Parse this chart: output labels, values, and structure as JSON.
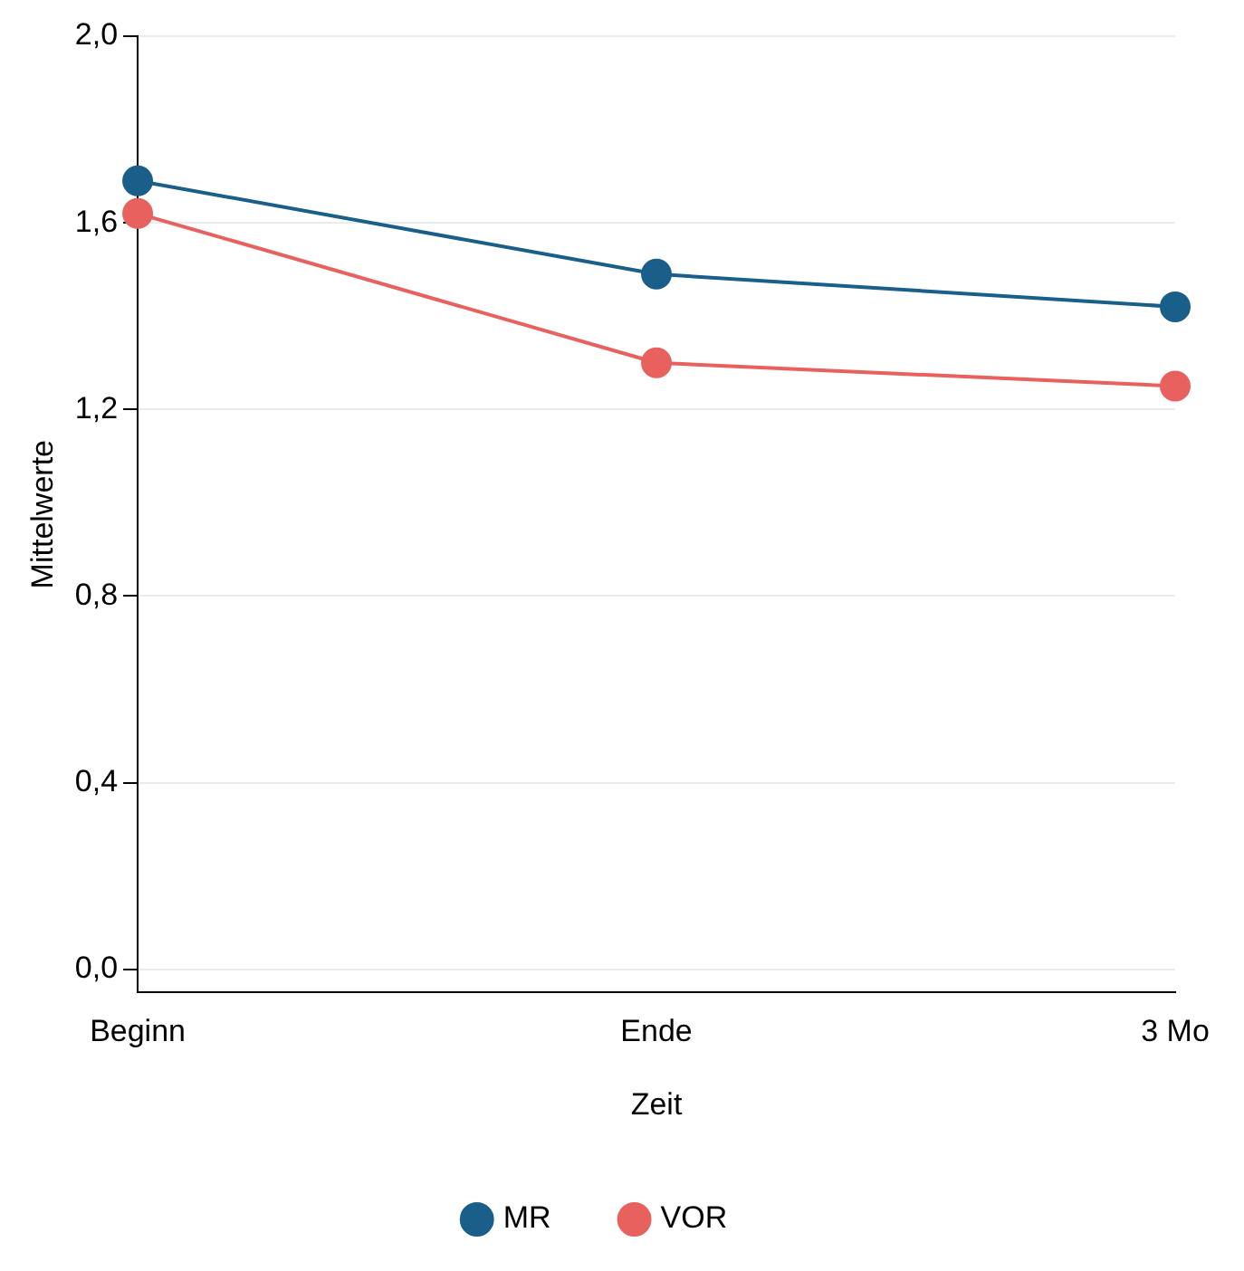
{
  "chart_data": {
    "type": "line",
    "xlabel": "Zeit",
    "ylabel": "Mittelwerte",
    "categories": [
      "Beginn",
      "Ende",
      "3 Mo"
    ],
    "series": [
      {
        "name": "MR",
        "color": "#1a5e8a",
        "values": [
          1.69,
          1.49,
          1.42
        ]
      },
      {
        "name": "VOR",
        "color": "#e8615f",
        "values": [
          1.62,
          1.3,
          1.25
        ]
      }
    ],
    "ylim": [
      -0.05,
      2.0
    ],
    "yticks": [
      {
        "value": 0,
        "label": "0,0"
      },
      {
        "value": 0.4,
        "label": "0,4"
      },
      {
        "value": 0.8,
        "label": "0,8"
      },
      {
        "value": 1.2,
        "label": "1,2"
      },
      {
        "value": 1.6,
        "label": "1,6"
      },
      {
        "value": 2.0,
        "label": "2,0"
      }
    ],
    "grid": "y",
    "legend": "bottom",
    "marker": "circle",
    "line_style": "solid"
  }
}
